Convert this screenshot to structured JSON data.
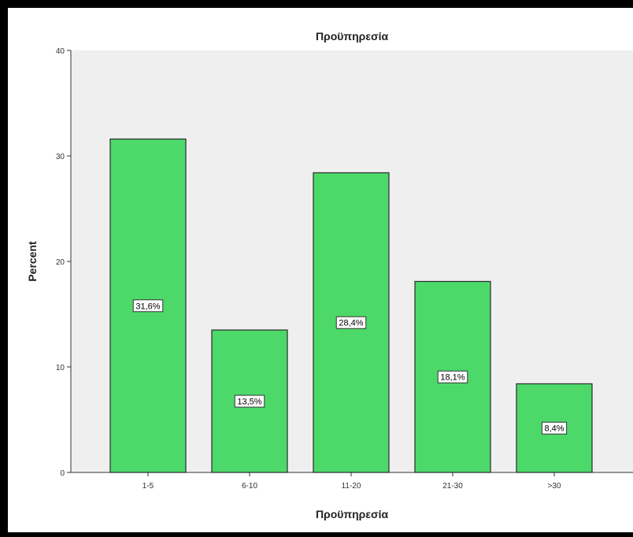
{
  "chart_data": {
    "type": "bar",
    "title": "Προϋπηρεσία",
    "xlabel": "Προϋπηρεσία",
    "ylabel": "Percent",
    "categories": [
      "1-5",
      "6-10",
      "11-20",
      "21-30",
      ">30"
    ],
    "values": [
      31.6,
      13.5,
      28.4,
      18.1,
      8.4
    ],
    "data_labels": [
      "31,6%",
      "13,5%",
      "28,4%",
      "18,1%",
      "8,4%"
    ],
    "ylim": [
      0,
      40
    ],
    "yticks": [
      0,
      10,
      20,
      30,
      40
    ],
    "grid": false,
    "bar_color": "#4cd96a",
    "plot_background": "#efefef"
  }
}
